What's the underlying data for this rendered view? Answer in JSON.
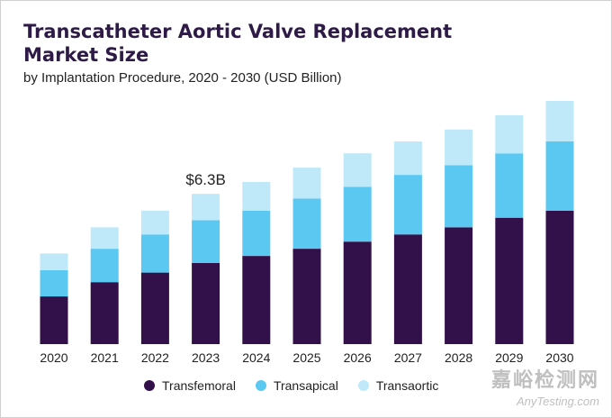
{
  "header": {
    "title": "Transcatheter Aortic Valve Replacement Market Size",
    "subtitle": "by Implantation Procedure, 2020 - 2030 (USD Billion)"
  },
  "watermark": {
    "cn": "嘉峪检测网",
    "en": "AnyTesting.com"
  },
  "colors": {
    "transfemoral": "#32104a",
    "transapical": "#5bc8f2",
    "transaortic": "#bfe8f9"
  },
  "chart_data": {
    "type": "bar",
    "stacked": true,
    "title": "Transcatheter Aortic Valve Replacement Market Size",
    "subtitle": "by Implantation Procedure, 2020 - 2030 (USD Billion)",
    "xlabel": "",
    "ylabel": "USD Billion",
    "grid": false,
    "legend_position": "bottom",
    "categories": [
      "2020",
      "2021",
      "2022",
      "2023",
      "2024",
      "2025",
      "2026",
      "2027",
      "2028",
      "2029",
      "2030"
    ],
    "series": [
      {
        "name": "Transfemoral",
        "values": [
          2.0,
          2.6,
          3.0,
          3.4,
          3.7,
          4.0,
          4.3,
          4.6,
          4.9,
          5.3,
          5.6
        ]
      },
      {
        "name": "Transapical",
        "values": [
          1.1,
          1.4,
          1.6,
          1.8,
          1.9,
          2.1,
          2.3,
          2.5,
          2.6,
          2.7,
          2.9
        ]
      },
      {
        "name": "Transaortic",
        "values": [
          0.7,
          0.9,
          1.0,
          1.1,
          1.2,
          1.3,
          1.4,
          1.4,
          1.5,
          1.6,
          1.7
        ]
      }
    ],
    "annotations": [
      {
        "category": "2023",
        "text": "$6.3B"
      }
    ],
    "ylim": [
      0,
      10.2
    ]
  }
}
